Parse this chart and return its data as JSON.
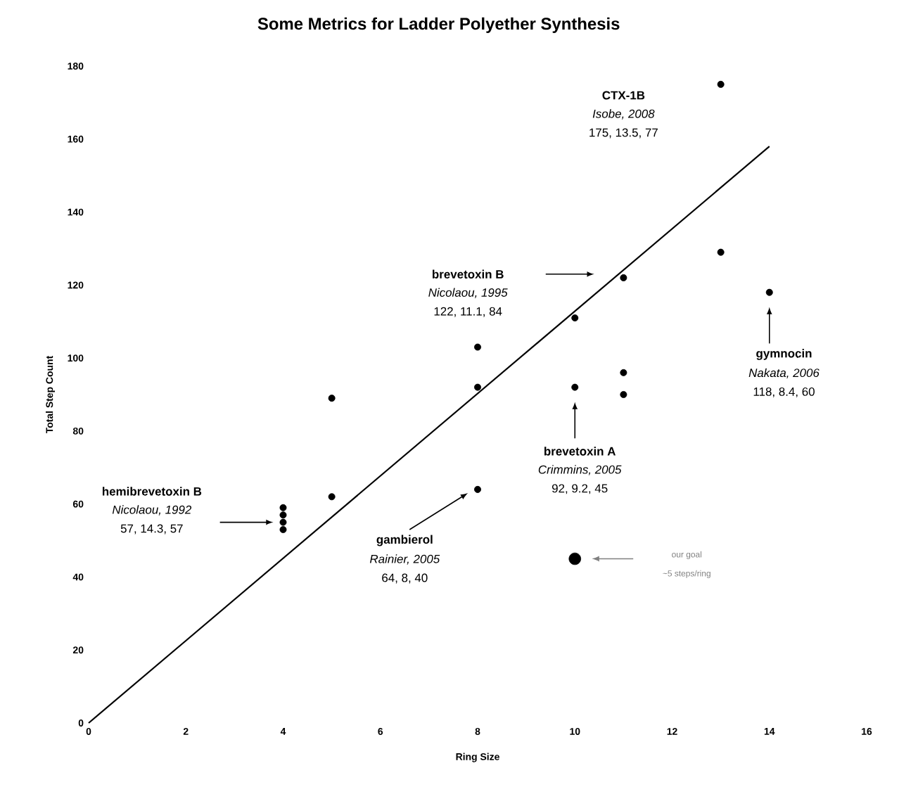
{
  "chart_data": {
    "type": "scatter",
    "title": "Some Metrics for Ladder Polyether Synthesis",
    "xlabel": "Ring Size",
    "ylabel": "Total Step Count",
    "xlim": [
      0,
      16
    ],
    "ylim": [
      0,
      180
    ],
    "xticks": [
      0,
      2,
      4,
      6,
      8,
      10,
      12,
      14,
      16
    ],
    "yticks": [
      0,
      20,
      40,
      60,
      80,
      100,
      120,
      140,
      160,
      180
    ],
    "grid": false,
    "series": [
      {
        "color": "#000000",
        "marker": "circle",
        "x": [
          4,
          4,
          4,
          4,
          5,
          5,
          8,
          8,
          8,
          10,
          10,
          11,
          11,
          11,
          13,
          13,
          14
        ],
        "values": [
          53,
          55,
          57,
          59,
          62,
          89,
          64,
          92,
          103,
          92,
          111,
          90,
          96,
          122,
          129,
          175,
          118
        ]
      },
      {
        "color": "#000000",
        "marker": "circle",
        "x": [
          10
        ],
        "values": [
          45
        ]
      },
      {
        "type": "line",
        "color": "#000000",
        "marker": "none",
        "x": [
          0,
          14
        ],
        "values": [
          0,
          158
        ]
      }
    ],
    "annotations": [
      "CTX-1B",
      "Isobe, 2008",
      "175, 13.5, 77",
      "brevetoxin B",
      "Nicolaou, 1995",
      "122, 11.1, 84",
      "gymnocin",
      "Nakata, 2006",
      "118, 8.4, 60",
      "brevetoxin A",
      "Crimmins, 2005",
      "92, 9.2, 45",
      "hemibrevetoxin B",
      "Nicolaou, 1992",
      "57, 14.3, 57",
      "gambierol",
      "Rainier, 2005",
      "64, 8, 40",
      "our goal",
      "~5 steps/ring"
    ]
  }
}
